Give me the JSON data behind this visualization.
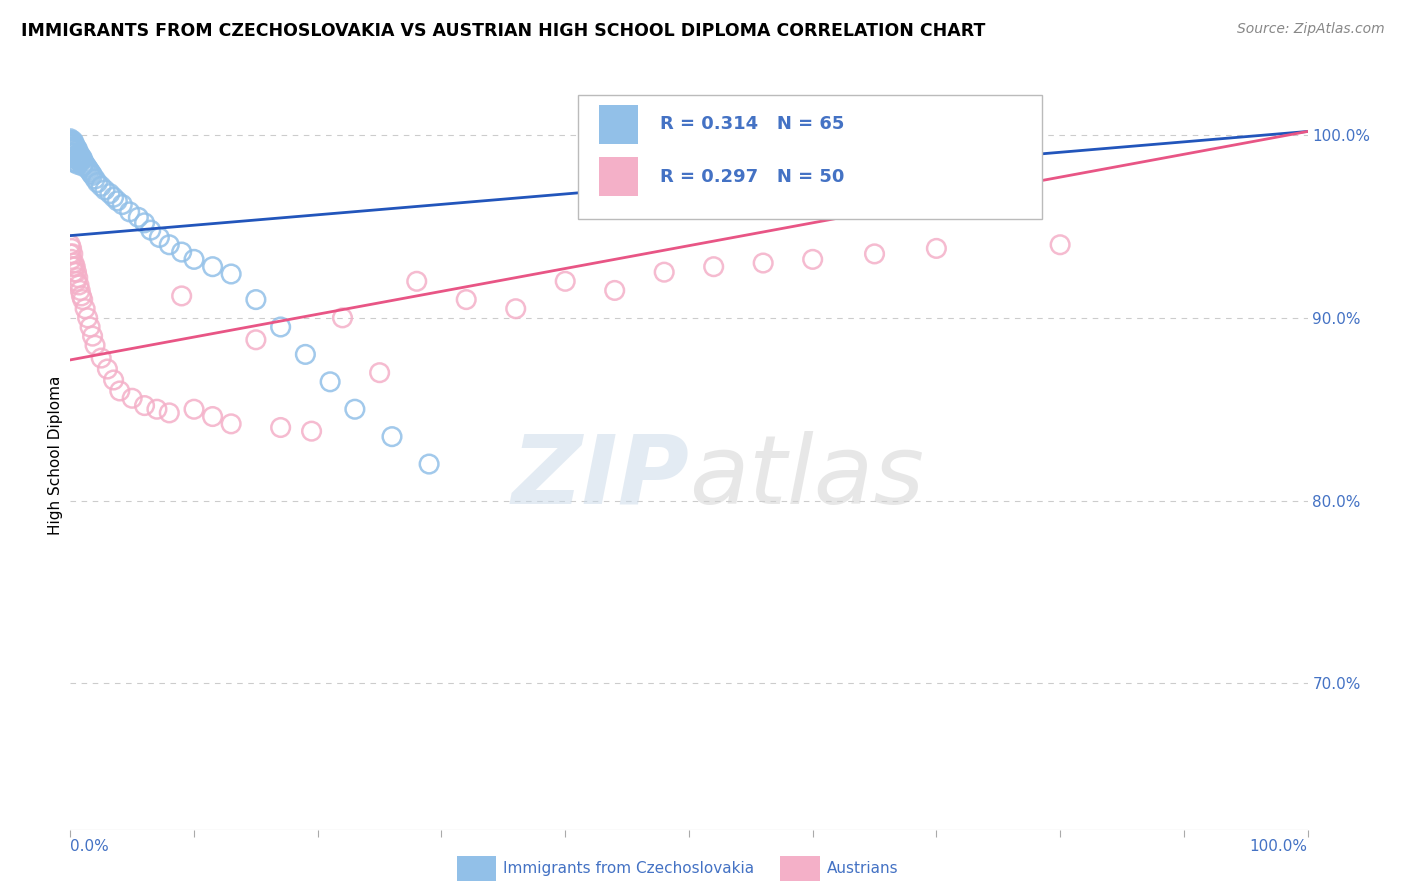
{
  "title": "IMMIGRANTS FROM CZECHOSLOVAKIA VS AUSTRIAN HIGH SCHOOL DIPLOMA CORRELATION CHART",
  "source": "Source: ZipAtlas.com",
  "ylabel": "High School Diploma",
  "legend_label1": "Immigrants from Czechoslovakia",
  "legend_label2": "Austrians",
  "r1": 0.314,
  "n1": 65,
  "r2": 0.297,
  "n2": 50,
  "blue_color": "#92c0e8",
  "pink_color": "#f4b0c8",
  "blue_line_color": "#2255bb",
  "pink_line_color": "#e85585",
  "text_color": "#4472c4",
  "watermark_zip": "ZIP",
  "watermark_atlas": "atlas",
  "background_color": "#ffffff",
  "grid_color": "#cccccc",
  "xlim": [
    0.0,
    1.0
  ],
  "ylim": [
    0.62,
    1.03
  ],
  "ytick_values": [
    0.7,
    0.8,
    0.9,
    1.0
  ],
  "ytick_labels": [
    "70.0%",
    "80.0%",
    "90.0%",
    "100.0%"
  ],
  "blue_scatter_x": [
    0.0,
    0.0,
    0.0,
    0.0,
    0.0,
    0.001,
    0.001,
    0.001,
    0.001,
    0.002,
    0.002,
    0.002,
    0.003,
    0.003,
    0.003,
    0.003,
    0.004,
    0.004,
    0.004,
    0.005,
    0.005,
    0.005,
    0.006,
    0.006,
    0.006,
    0.007,
    0.007,
    0.008,
    0.008,
    0.009,
    0.01,
    0.01,
    0.011,
    0.012,
    0.013,
    0.014,
    0.015,
    0.016,
    0.017,
    0.018,
    0.02,
    0.022,
    0.025,
    0.028,
    0.032,
    0.035,
    0.038,
    0.042,
    0.048,
    0.055,
    0.06,
    0.065,
    0.072,
    0.08,
    0.09,
    0.1,
    0.115,
    0.13,
    0.15,
    0.17,
    0.19,
    0.21,
    0.23,
    0.26,
    0.29
  ],
  "blue_scatter_y": [
    0.998,
    0.997,
    0.995,
    0.993,
    0.99,
    0.996,
    0.994,
    0.992,
    0.988,
    0.997,
    0.995,
    0.99,
    0.996,
    0.993,
    0.99,
    0.985,
    0.994,
    0.991,
    0.987,
    0.993,
    0.989,
    0.985,
    0.992,
    0.988,
    0.984,
    0.99,
    0.986,
    0.989,
    0.985,
    0.988,
    0.987,
    0.983,
    0.985,
    0.984,
    0.983,
    0.982,
    0.981,
    0.98,
    0.979,
    0.978,
    0.976,
    0.974,
    0.972,
    0.97,
    0.968,
    0.966,
    0.964,
    0.962,
    0.958,
    0.955,
    0.952,
    0.948,
    0.944,
    0.94,
    0.936,
    0.932,
    0.928,
    0.924,
    0.91,
    0.895,
    0.88,
    0.865,
    0.85,
    0.835,
    0.82
  ],
  "pink_scatter_x": [
    0.0,
    0.0,
    0.001,
    0.001,
    0.002,
    0.002,
    0.003,
    0.003,
    0.004,
    0.005,
    0.005,
    0.006,
    0.007,
    0.008,
    0.009,
    0.01,
    0.012,
    0.014,
    0.016,
    0.018,
    0.02,
    0.025,
    0.03,
    0.035,
    0.04,
    0.05,
    0.06,
    0.07,
    0.08,
    0.09,
    0.1,
    0.115,
    0.13,
    0.15,
    0.17,
    0.195,
    0.22,
    0.25,
    0.28,
    0.32,
    0.36,
    0.4,
    0.44,
    0.48,
    0.52,
    0.56,
    0.6,
    0.65,
    0.7,
    0.8
  ],
  "pink_scatter_y": [
    0.94,
    0.935,
    0.938,
    0.932,
    0.935,
    0.928,
    0.93,
    0.925,
    0.928,
    0.925,
    0.92,
    0.922,
    0.918,
    0.915,
    0.912,
    0.91,
    0.905,
    0.9,
    0.895,
    0.89,
    0.885,
    0.878,
    0.872,
    0.866,
    0.86,
    0.856,
    0.852,
    0.85,
    0.848,
    0.912,
    0.85,
    0.846,
    0.842,
    0.888,
    0.84,
    0.838,
    0.9,
    0.87,
    0.92,
    0.91,
    0.905,
    0.92,
    0.915,
    0.925,
    0.928,
    0.93,
    0.932,
    0.935,
    0.938,
    0.94
  ],
  "blue_line_x": [
    0.0,
    1.0
  ],
  "blue_line_y_start": 0.945,
  "blue_line_y_end": 1.002,
  "pink_line_x": [
    0.0,
    1.0
  ],
  "pink_line_y_start": 0.877,
  "pink_line_y_end": 1.002
}
